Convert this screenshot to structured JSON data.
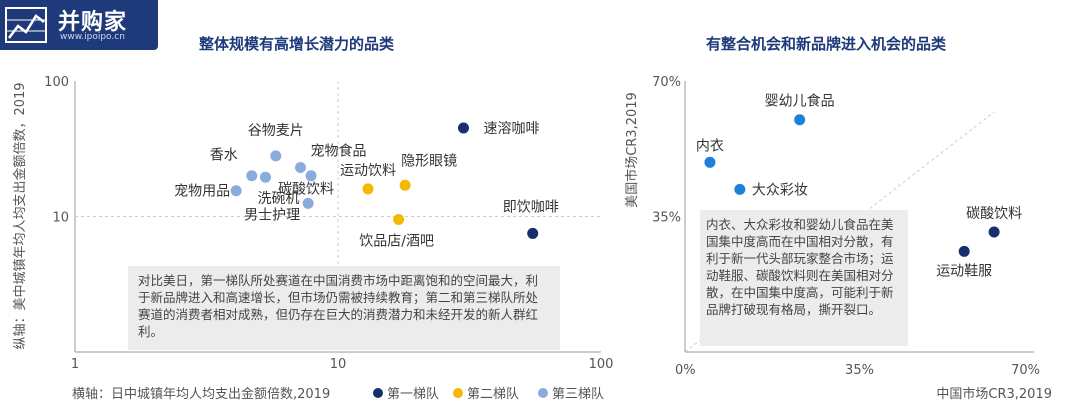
{
  "brand": {
    "name": "并购家",
    "url": "www.ipoipo.cn"
  },
  "colors": {
    "tier1": "#15306b",
    "tier2": "#f5b800",
    "tier3": "#8aabdd",
    "axis": "#999999",
    "title": "#1f3a7a"
  },
  "chart_data": [
    {
      "type": "scatter",
      "title": "整体规模有高增长潜力的品类",
      "xlabel": "横轴：日中城镇年均人均支出金额倍数,2019",
      "ylabel": "纵轴：美中城镇年均人均支出金额倍数，2019",
      "x_scale": "log",
      "y_scale": "log",
      "xlim": [
        1,
        100
      ],
      "ylim": [
        1,
        100
      ],
      "x_ticks": [
        "1",
        "10",
        "100"
      ],
      "y_ticks": [
        "100",
        "10"
      ],
      "legend": [
        {
          "name": "第一梯队",
          "color": "#15306b"
        },
        {
          "name": "第二梯队",
          "color": "#f5b800"
        },
        {
          "name": "第三梯队",
          "color": "#8aabdd"
        }
      ],
      "points": [
        {
          "label": "速溶咖啡",
          "x": 30,
          "y": 45,
          "tier": 1
        },
        {
          "label": "即饮咖啡",
          "x": 55,
          "y": 7.5,
          "tier": 1
        },
        {
          "label": "运动饮料",
          "x": 13,
          "y": 16,
          "tier": 2
        },
        {
          "label": "隐形眼镜",
          "x": 18,
          "y": 17,
          "tier": 2
        },
        {
          "label": "饮品店/酒吧",
          "x": 17,
          "y": 9.5,
          "tier": 2
        },
        {
          "label": "谷物麦片",
          "x": 5.8,
          "y": 28,
          "tier": 3
        },
        {
          "label": "宠物食品",
          "x": 7.2,
          "y": 23,
          "tier": 3
        },
        {
          "label": "香水",
          "x": 4.7,
          "y": 20,
          "tier": 3
        },
        {
          "label": "洗碗机",
          "x": 5.3,
          "y": 19.5,
          "tier": 3
        },
        {
          "label": "碳酸饮料",
          "x": 7.9,
          "y": 20,
          "tier": 3
        },
        {
          "label": "宠物用品",
          "x": 4.1,
          "y": 15.5,
          "tier": 3
        },
        {
          "label": "男士护理",
          "x": 7.7,
          "y": 12.5,
          "tier": 3
        }
      ],
      "annotation": "对比美日，第一梯队所处赛道在中国消费市场中距离饱和的空间最大，利于新品牌进入和高速增长，但市场仍需被持续教育；第二和第三梯队所处赛道的消费者相对成熟，但仍存在巨大的消费潜力和未经开发的新人群红利。"
    },
    {
      "type": "scatter",
      "title": "有整合机会和新品牌进入机会的品类",
      "xlabel": "中国市场CR3,2019",
      "ylabel": "美国市场CR3,2019",
      "xlim": [
        0,
        70
      ],
      "ylim": [
        0,
        70
      ],
      "x_ticks": [
        "0%",
        "35%",
        "70%"
      ],
      "y_ticks": [
        "70%",
        "35%"
      ],
      "points": [
        {
          "label": "婴幼儿食品",
          "x": 23,
          "y": 60,
          "tier": 2
        },
        {
          "label": "内衣",
          "x": 5,
          "y": 49,
          "tier": 2
        },
        {
          "label": "大众彩妆",
          "x": 11,
          "y": 42,
          "tier": 2
        },
        {
          "label": "碳酸饮料",
          "x": 62,
          "y": 31,
          "tier": 1
        },
        {
          "label": "运动鞋服",
          "x": 56,
          "y": 26,
          "tier": 1
        }
      ],
      "annotation": "内衣、大众彩妆和婴幼儿食品在美国集中度高而在中国相对分散，有利于新一代头部玩家整合市场；运动鞋服、碳酸饮料则在美国相对分散，在中国集中度高，可能利于新品牌打破现有格局，撕开裂口。"
    }
  ]
}
